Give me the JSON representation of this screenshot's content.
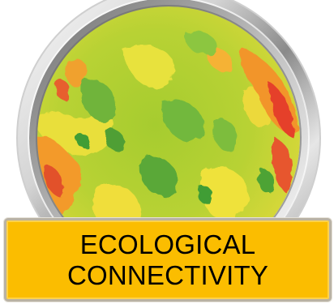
{
  "badge": {
    "icon": "connectivity-heatmap-map",
    "colors": {
      "ring_light": "#f7f7f7",
      "ring_mid": "#c9c9c9",
      "ring_dark": "#7d7d7d",
      "map_green": "#8cc63f",
      "map_dark_green": "#3f9d36",
      "map_yellow": "#f2e23a",
      "map_orange": "#f39a2b",
      "map_red": "#e5402b",
      "banner": "#fbbd00"
    }
  },
  "banner": {
    "line1": "ECOLOGICAL",
    "line2": "CONNECTIVITY"
  }
}
